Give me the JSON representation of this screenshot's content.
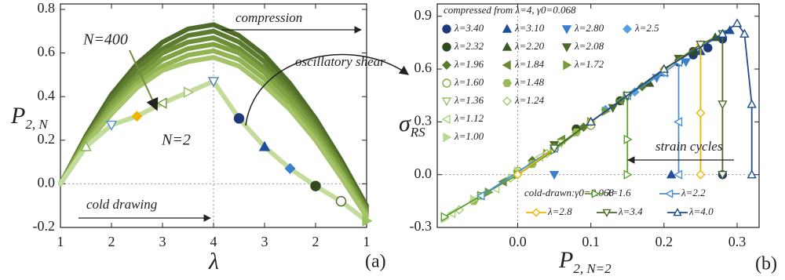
{
  "chart_data": [
    {
      "type": "line",
      "x": [
        1,
        1.5,
        2,
        2.5,
        3,
        3.5,
        4,
        4.5,
        5,
        5.5,
        6,
        6.5,
        7
      ],
      "xlim": [
        1,
        7
      ],
      "xticks": [
        1,
        2,
        3,
        4,
        {
          "value": 5,
          "label": "3"
        },
        {
          "value": 6,
          "label": "2"
        },
        {
          "value": 7,
          "label": "1"
        }
      ],
      "ylim": [
        -0.2,
        0.825
      ],
      "yticks": [
        -0.2,
        {
          "value": 0,
          "label": "0.0"
        },
        0.2,
        0.4,
        0.6,
        0.8
      ],
      "x_label": "λ",
      "y_label": "P",
      "y_label_sub": "2, N",
      "vline": 4,
      "hline": 0,
      "annotations": [
        "compression",
        "cold drawing",
        "oscillatory shear",
        "N=400",
        "N=2",
        "(a)"
      ],
      "series": [
        {
          "color": "#4f6b2a",
          "values": [
            0,
            0.22,
            0.41,
            0.55,
            0.65,
            0.71,
            0.73,
            0.68,
            0.59,
            0.46,
            0.3,
            0.11,
            -0.1
          ]
        },
        {
          "color": "#5d7c30",
          "values": [
            0,
            0.21,
            0.39,
            0.53,
            0.62,
            0.68,
            0.7,
            0.65,
            0.56,
            0.43,
            0.28,
            0.09,
            -0.11
          ]
        },
        {
          "color": "#6e8f38",
          "values": [
            0,
            0.21,
            0.37,
            0.5,
            0.6,
            0.65,
            0.67,
            0.62,
            0.53,
            0.41,
            0.26,
            0.08,
            -0.12
          ]
        },
        {
          "color": "#7fa142",
          "values": [
            0,
            0.2,
            0.36,
            0.48,
            0.57,
            0.62,
            0.64,
            0.6,
            0.51,
            0.39,
            0.24,
            0.06,
            -0.13
          ]
        },
        {
          "color": "#91b352",
          "values": [
            0,
            0.19,
            0.34,
            0.46,
            0.54,
            0.59,
            0.61,
            0.57,
            0.48,
            0.36,
            0.22,
            0.05,
            -0.14
          ]
        },
        {
          "color": "#a5c46a",
          "values": [
            0,
            0.18,
            0.32,
            0.44,
            0.52,
            0.56,
            0.58,
            0.54,
            0.45,
            0.34,
            0.2,
            0.03,
            -0.15
          ]
        },
        {
          "color": "#c3dc9c",
          "values": [
            0,
            0.17,
            0.27,
            0.31,
            0.37,
            0.42,
            0.47,
            0.3,
            0.17,
            0.07,
            -0.01,
            -0.08,
            -0.17
          ],
          "marker_shapes": [
            null,
            "triangle-up",
            "triangle-down",
            "diamond",
            "triangle-left",
            "triangle-right",
            "triangle-down",
            "circle",
            "triangle-up",
            "diamond",
            "circle",
            "circle",
            "triangle-right"
          ],
          "marker_colors": [
            null,
            "#7fb04a",
            "#4a90d0",
            "#f0b400",
            "#6e9a3a",
            "#9ac060",
            "#4a7ac0",
            "#1f3a7a",
            "#1f4e9a",
            "#3a7fd0",
            "#2e4a1e",
            "#4a6a28",
            "#9ac060"
          ],
          "marker_filled": [
            false,
            false,
            false,
            true,
            false,
            false,
            false,
            true,
            true,
            true,
            true,
            false,
            true
          ]
        }
      ]
    },
    {
      "type": "scatter",
      "xlim": [
        -0.11,
        0.33
      ],
      "xticks": [
        {
          "value": 0,
          "label": "0.0"
        },
        0.1,
        0.2,
        0.3
      ],
      "ylim": [
        -0.3,
        0.97
      ],
      "yticks": [
        -0.3,
        {
          "value": 0,
          "label": "0.0"
        },
        0.3,
        0.6,
        0.9
      ],
      "x_label": "P",
      "x_label_sub": "2, N=2",
      "y_label": "σ",
      "y_label_sub": "RS",
      "vline": 0,
      "hline": 0,
      "legend_title": "compressed from λ=4, γ0=0.068",
      "line_legend_title": "cold-drawn:γ0=0.068",
      "annotations": [
        "strain cycles",
        "(b)"
      ],
      "series": [
        {
          "name": "λ=3.40",
          "color": "#1f3a7a",
          "marker": "circle",
          "filled": true,
          "x": [
            0.22,
            0.24,
            0.26,
            0.28,
            0.28
          ],
          "values": [
            0.64,
            0.68,
            0.72,
            0.77,
            0.0
          ]
        },
        {
          "name": "λ=3.10",
          "color": "#1f4e9a",
          "marker": "triangle-up",
          "filled": true,
          "x": [
            0.2,
            0.25,
            0.29,
            0.21
          ],
          "values": [
            0.58,
            0.7,
            0.82,
            0.0
          ]
        },
        {
          "name": "λ=2.80",
          "color": "#3a7fd0",
          "marker": "triangle-down",
          "filled": true,
          "x": [
            0.15,
            0.19,
            0.23,
            0.05
          ],
          "values": [
            0.44,
            0.55,
            0.64,
            0.0
          ]
        },
        {
          "name": "λ=2.5",
          "color": "#5aa0e0",
          "marker": "diamond",
          "filled": true,
          "x": [
            0.12,
            0.16,
            0.2
          ],
          "values": [
            0.37,
            0.47,
            0.58
          ]
        },
        {
          "name": "λ=2.32",
          "color": "#2e4a1e",
          "marker": "circle",
          "filled": true,
          "x": [
            0.08,
            0.14,
            0.24
          ],
          "values": [
            0.26,
            0.42,
            0.7
          ]
        },
        {
          "name": "λ=2.20",
          "color": "#3b5a23",
          "marker": "triangle-up",
          "filled": true,
          "x": [
            0.1,
            0.18,
            0.27
          ],
          "values": [
            0.3,
            0.52,
            0.78
          ]
        },
        {
          "name": "λ=2.08",
          "color": "#4a6a28",
          "marker": "triangle-down",
          "filled": true,
          "x": [
            0.05,
            0.13,
            0.22
          ],
          "values": [
            0.17,
            0.38,
            0.66
          ]
        },
        {
          "name": "λ=1.96",
          "color": "#5a7a2e",
          "marker": "diamond",
          "filled": true,
          "x": [
            0.02,
            0.09,
            0.17
          ],
          "values": [
            0.08,
            0.27,
            0.5
          ]
        },
        {
          "name": "λ=1.84",
          "color": "#6a8a35",
          "marker": "triangle-left",
          "filled": true,
          "x": [
            -0.02,
            0.06,
            0.14
          ],
          "values": [
            -0.04,
            0.2,
            0.42
          ]
        },
        {
          "name": "λ=1.72",
          "color": "#7a9a3a",
          "marker": "triangle-right",
          "filled": true,
          "x": [
            -0.04,
            0.04,
            0.12
          ],
          "values": [
            -0.1,
            0.12,
            0.36
          ]
        },
        {
          "name": "λ=1.60",
          "color": "#8aaa45",
          "marker": "circle",
          "filled": false,
          "x": [
            0.0,
            0.05,
            0.1
          ],
          "values": [
            0.02,
            0.15,
            0.28
          ]
        },
        {
          "name": "λ=1.48",
          "color": "#9aba55",
          "marker": "hexagon",
          "filled": true,
          "x": [
            -0.06,
            0.02,
            0.08
          ],
          "values": [
            -0.15,
            0.06,
            0.24
          ]
        },
        {
          "name": "λ=1.36",
          "color": "#a0c060",
          "marker": "triangle-down",
          "filled": false,
          "x": [
            -0.05,
            0.0,
            0.06
          ],
          "values": [
            -0.12,
            0.0,
            0.18
          ]
        },
        {
          "name": "λ=1.24",
          "color": "#a8c870",
          "marker": "diamond",
          "filled": false,
          "x": [
            -0.08,
            -0.01,
            0.04
          ],
          "values": [
            -0.2,
            -0.02,
            0.12
          ]
        },
        {
          "name": "λ=1.12",
          "color": "#b0d080",
          "marker": "triangle-left",
          "filled": false,
          "x": [
            -0.09,
            -0.03,
            0.03
          ],
          "values": [
            -0.22,
            -0.08,
            0.1
          ]
        },
        {
          "name": "λ=1.00",
          "color": "#b8d890",
          "marker": "triangle-right",
          "filled": true,
          "x": [
            -0.1,
            -0.06,
            0.0
          ],
          "values": [
            -0.25,
            -0.14,
            0.02
          ]
        },
        {
          "name": "λ=1.6",
          "color": "#5aa02e",
          "marker": "triangle-right",
          "filled": false,
          "line": true,
          "x": [
            -0.1,
            -0.05,
            0.0,
            0.05,
            0.1,
            0.15,
            0.15,
            0.15
          ],
          "values": [
            -0.24,
            -0.12,
            0.0,
            0.14,
            0.3,
            0.45,
            0.2,
            0.0
          ]
        },
        {
          "name": "λ=2.2",
          "color": "#4a90d0",
          "marker": "triangle-left",
          "filled": false,
          "line": true,
          "x": [
            -0.05,
            0.05,
            0.15,
            0.2,
            0.22,
            0.22,
            0.22
          ],
          "values": [
            -0.12,
            0.15,
            0.45,
            0.58,
            0.64,
            0.3,
            0.0
          ]
        },
        {
          "name": "λ=2.8",
          "color": "#f0b400",
          "marker": "diamond",
          "filled": false,
          "line": true,
          "x": [
            0.0,
            0.1,
            0.2,
            0.25,
            0.25,
            0.25
          ],
          "values": [
            0.0,
            0.3,
            0.6,
            0.74,
            0.35,
            0.0
          ]
        },
        {
          "name": "λ=3.4",
          "color": "#4a6a28",
          "marker": "triangle-down",
          "filled": false,
          "line": true,
          "x": [
            0.05,
            0.15,
            0.25,
            0.28,
            0.28,
            0.28
          ],
          "values": [
            0.15,
            0.45,
            0.74,
            0.8,
            0.4,
            0.0
          ]
        },
        {
          "name": "λ=4.0",
          "color": "#1f4e8a",
          "marker": "triangle-up",
          "filled": false,
          "line": true,
          "x": [
            0.1,
            0.2,
            0.28,
            0.3,
            0.31,
            0.32,
            0.32
          ],
          "values": [
            0.3,
            0.6,
            0.8,
            0.86,
            0.8,
            0.4,
            0.0
          ]
        }
      ]
    }
  ]
}
